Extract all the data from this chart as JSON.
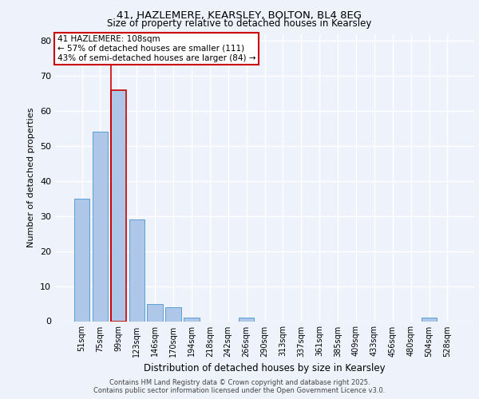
{
  "title_line1": "41, HAZLEMERE, KEARSLEY, BOLTON, BL4 8EG",
  "title_line2": "Size of property relative to detached houses in Kearsley",
  "xlabel": "Distribution of detached houses by size in Kearsley",
  "ylabel": "Number of detached properties",
  "categories": [
    "51sqm",
    "75sqm",
    "99sqm",
    "123sqm",
    "146sqm",
    "170sqm",
    "194sqm",
    "218sqm",
    "242sqm",
    "266sqm",
    "290sqm",
    "313sqm",
    "337sqm",
    "361sqm",
    "385sqm",
    "409sqm",
    "433sqm",
    "456sqm",
    "480sqm",
    "504sqm",
    "528sqm"
  ],
  "values": [
    35,
    54,
    66,
    29,
    5,
    4,
    1,
    0,
    0,
    1,
    0,
    0,
    0,
    0,
    0,
    0,
    0,
    0,
    0,
    1,
    0
  ],
  "bar_color": "#aec6e8",
  "bar_edge_color": "#5a9fd4",
  "highlight_bar_index": 2,
  "red_line_x": 2,
  "annotation_text": "41 HAZLEMERE: 108sqm\n← 57% of detached houses are smaller (111)\n43% of semi-detached houses are larger (84) →",
  "annotation_box_color": "#ffffff",
  "annotation_box_edge": "#cc0000",
  "ylim": [
    0,
    82
  ],
  "yticks": [
    0,
    10,
    20,
    30,
    40,
    50,
    60,
    70,
    80
  ],
  "background_color": "#eef2fb",
  "grid_color": "#ffffff",
  "footer_line1": "Contains HM Land Registry data © Crown copyright and database right 2025.",
  "footer_line2": "Contains public sector information licensed under the Open Government Licence v3.0."
}
